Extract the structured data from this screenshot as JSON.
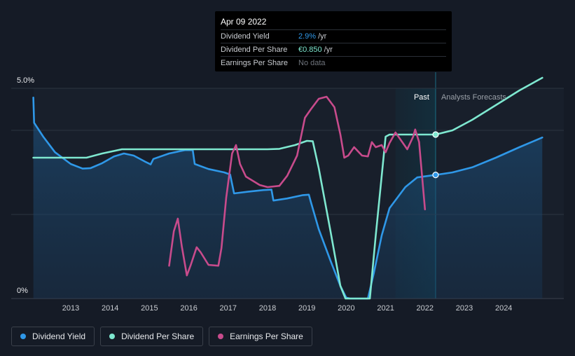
{
  "chart_data": {
    "type": "line",
    "x_ticks": [
      "2013",
      "2014",
      "2015",
      "2016",
      "2017",
      "2018",
      "2019",
      "2020",
      "2021",
      "2022",
      "2023",
      "2024"
    ],
    "y_ticks": [
      "5.0%",
      "0%"
    ],
    "ylim": [
      0,
      5.0
    ],
    "grid": true,
    "regions": {
      "past_label": "Past",
      "forecast_label": "Analysts Forecasts"
    },
    "series": [
      {
        "name": "Dividend Yield",
        "color": "#2f98e8",
        "area": true,
        "points": [
          [
            2012.05,
            4.78
          ],
          [
            2012.07,
            4.18
          ],
          [
            2012.3,
            3.85
          ],
          [
            2012.6,
            3.48
          ],
          [
            2013.0,
            3.2
          ],
          [
            2013.3,
            3.09
          ],
          [
            2013.5,
            3.1
          ],
          [
            2013.8,
            3.22
          ],
          [
            2014.1,
            3.38
          ],
          [
            2014.35,
            3.45
          ],
          [
            2014.6,
            3.4
          ],
          [
            2014.9,
            3.25
          ],
          [
            2015.03,
            3.19
          ],
          [
            2015.1,
            3.32
          ],
          [
            2015.5,
            3.45
          ],
          [
            2015.9,
            3.53
          ],
          [
            2016.1,
            3.53
          ],
          [
            2016.15,
            3.2
          ],
          [
            2016.5,
            3.08
          ],
          [
            2016.9,
            3.0
          ],
          [
            2017.05,
            2.95
          ],
          [
            2017.15,
            2.5
          ],
          [
            2017.5,
            2.54
          ],
          [
            2017.9,
            2.58
          ],
          [
            2018.1,
            2.59
          ],
          [
            2018.15,
            2.33
          ],
          [
            2018.5,
            2.38
          ],
          [
            2018.9,
            2.46
          ],
          [
            2019.05,
            2.47
          ],
          [
            2019.1,
            2.3
          ],
          [
            2019.3,
            1.65
          ],
          [
            2019.6,
            0.9
          ],
          [
            2019.85,
            0.3
          ],
          [
            2020.0,
            0.02
          ],
          [
            2020.1,
            0.0
          ],
          [
            2020.55,
            0.0
          ],
          [
            2020.7,
            0.6
          ],
          [
            2020.9,
            1.5
          ],
          [
            2021.1,
            2.15
          ],
          [
            2021.5,
            2.65
          ],
          [
            2021.8,
            2.88
          ],
          [
            2022.27,
            2.94
          ],
          [
            2022.7,
            3.0
          ],
          [
            2023.2,
            3.12
          ],
          [
            2023.8,
            3.35
          ],
          [
            2024.4,
            3.6
          ],
          [
            2024.98,
            3.83
          ]
        ]
      },
      {
        "name": "Dividend Per Share",
        "color": "#7ee8d0",
        "area": false,
        "points": [
          [
            2012.05,
            3.35
          ],
          [
            2013.4,
            3.35
          ],
          [
            2013.8,
            3.45
          ],
          [
            2014.3,
            3.55
          ],
          [
            2015.0,
            3.55
          ],
          [
            2016.0,
            3.55
          ],
          [
            2017.0,
            3.55
          ],
          [
            2018.0,
            3.55
          ],
          [
            2018.3,
            3.56
          ],
          [
            2018.7,
            3.65
          ],
          [
            2019.0,
            3.75
          ],
          [
            2019.15,
            3.74
          ],
          [
            2019.3,
            3.1
          ],
          [
            2019.6,
            1.6
          ],
          [
            2019.85,
            0.3
          ],
          [
            2019.98,
            0.0
          ],
          [
            2020.6,
            0.0
          ],
          [
            2020.75,
            1.5
          ],
          [
            2020.92,
            3.1
          ],
          [
            2021.0,
            3.85
          ],
          [
            2021.1,
            3.9
          ],
          [
            2022.27,
            3.9
          ],
          [
            2022.7,
            4.0
          ],
          [
            2023.2,
            4.25
          ],
          [
            2023.8,
            4.6
          ],
          [
            2024.4,
            4.95
          ],
          [
            2024.98,
            5.25
          ]
        ]
      },
      {
        "name": "Earnings Per Share",
        "color": "#c84b8c",
        "area": false,
        "points": [
          [
            2015.5,
            0.78
          ],
          [
            2015.62,
            1.6
          ],
          [
            2015.72,
            1.9
          ],
          [
            2015.82,
            1.25
          ],
          [
            2015.95,
            0.55
          ],
          [
            2016.05,
            0.8
          ],
          [
            2016.2,
            1.22
          ],
          [
            2016.3,
            1.1
          ],
          [
            2016.5,
            0.8
          ],
          [
            2016.75,
            0.78
          ],
          [
            2016.83,
            1.2
          ],
          [
            2016.95,
            2.4
          ],
          [
            2017.1,
            3.45
          ],
          [
            2017.2,
            3.65
          ],
          [
            2017.3,
            3.2
          ],
          [
            2017.45,
            2.9
          ],
          [
            2017.8,
            2.7
          ],
          [
            2018.0,
            2.65
          ],
          [
            2018.3,
            2.68
          ],
          [
            2018.5,
            2.92
          ],
          [
            2018.75,
            3.4
          ],
          [
            2018.95,
            4.3
          ],
          [
            2019.1,
            4.5
          ],
          [
            2019.3,
            4.75
          ],
          [
            2019.5,
            4.8
          ],
          [
            2019.7,
            4.55
          ],
          [
            2019.85,
            3.9
          ],
          [
            2019.95,
            3.35
          ],
          [
            2020.05,
            3.4
          ],
          [
            2020.2,
            3.6
          ],
          [
            2020.4,
            3.4
          ],
          [
            2020.55,
            3.38
          ],
          [
            2020.65,
            3.72
          ],
          [
            2020.75,
            3.6
          ],
          [
            2020.9,
            3.65
          ],
          [
            2021.0,
            3.48
          ],
          [
            2021.1,
            3.7
          ],
          [
            2021.25,
            3.95
          ],
          [
            2021.4,
            3.75
          ],
          [
            2021.55,
            3.55
          ],
          [
            2021.7,
            3.85
          ],
          [
            2021.75,
            4.02
          ],
          [
            2021.85,
            3.72
          ],
          [
            2021.95,
            2.65
          ],
          [
            2022.0,
            2.12
          ]
        ]
      }
    ],
    "markers": [
      {
        "series": "Dividend Yield",
        "x": 2022.27,
        "y": 2.94
      },
      {
        "series": "Dividend Per Share",
        "x": 2022.27,
        "y": 3.9
      }
    ]
  },
  "tooltip": {
    "date": "Apr 09 2022",
    "rows": [
      {
        "label": "Dividend Yield",
        "value": "2.9%",
        "unit": "/yr"
      },
      {
        "label": "Dividend Per Share",
        "value": "€0.850",
        "unit": "/yr"
      },
      {
        "label": "Earnings Per Share",
        "value": "No data",
        "unit": ""
      }
    ]
  },
  "legend": [
    {
      "label": "Dividend Yield",
      "color": "#2f98e8"
    },
    {
      "label": "Dividend Per Share",
      "color": "#7ee8d0"
    },
    {
      "label": "Earnings Per Share",
      "color": "#c84b8c"
    }
  ]
}
